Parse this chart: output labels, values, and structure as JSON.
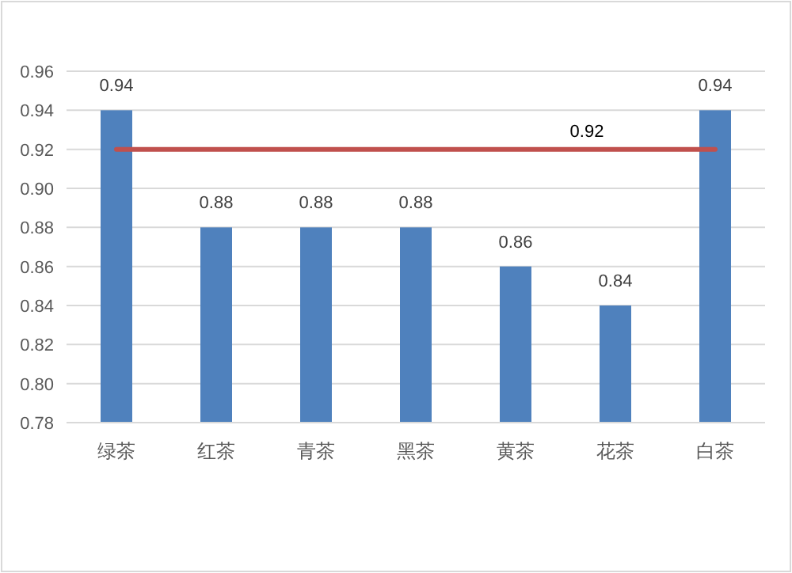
{
  "chart_data": {
    "type": "bar",
    "categories": [
      "绿茶",
      "红茶",
      "青茶",
      "黑茶",
      "黄茶",
      "花茶",
      "白茶"
    ],
    "values": [
      0.94,
      0.88,
      0.88,
      0.88,
      0.86,
      0.84,
      0.94
    ],
    "color": "#4f81bd",
    "ylim": [
      0.78,
      0.96
    ],
    "yticks": [
      {
        "value": 0.78,
        "label": "0.78"
      },
      {
        "value": 0.8,
        "label": "0.80"
      },
      {
        "value": 0.82,
        "label": "0.82"
      },
      {
        "value": 0.84,
        "label": "0.84"
      },
      {
        "value": 0.86,
        "label": "0.86"
      },
      {
        "value": 0.88,
        "label": "0.88"
      },
      {
        "value": 0.9,
        "label": "0.90"
      },
      {
        "value": 0.92,
        "label": "0.92"
      },
      {
        "value": 0.94,
        "label": "0.94"
      },
      {
        "value": 0.96,
        "label": "0.96"
      }
    ],
    "grid": "y",
    "data_labels": true,
    "ref_lines": [
      {
        "axis": "y",
        "value": 0.92,
        "label": "0.92",
        "color": "#c0504d"
      }
    ]
  }
}
